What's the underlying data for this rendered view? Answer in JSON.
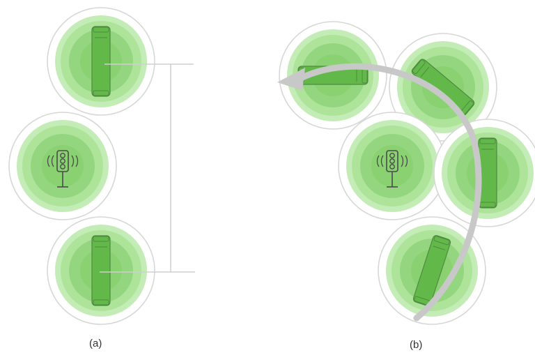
{
  "panels": [
    {
      "label": "(a)"
    },
    {
      "label": "(b)"
    }
  ],
  "node_kinds": {
    "vehicle": "vehicle-icon",
    "traffic_light": "traffic-light-icon"
  },
  "connector": "bracket-line",
  "rotation_arrow": "curved-arrow-icon",
  "colors": {
    "outer_ring": "#d7d7d7",
    "halo": "#c4ecb6",
    "mid": "#ade49a",
    "inner": "#94d67f",
    "core": "#7fcd66",
    "vehicle_body": "#62b94a",
    "outline": "#4f8a40",
    "arrow": "#c8c8c8",
    "line": "#cfcfcf"
  }
}
